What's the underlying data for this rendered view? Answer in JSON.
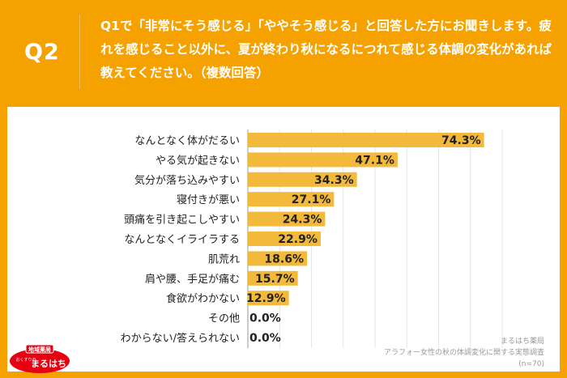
{
  "header": {
    "q_label": "Q2",
    "question": "Q1で「非常にそう感じる」「ややそう感じる」と回答した方にお聞きします。疲れを感じること以外に、夏が終わり秋になるにつれて感じる体調の変化があれば教えてください。（複数回答）"
  },
  "chart_data": {
    "type": "bar",
    "orientation": "horizontal",
    "categories": [
      "なんとなく体がだるい",
      "やる気が起きない",
      "気分が落ち込みやすい",
      "寝付きが悪い",
      "頭痛を引き起こしやすい",
      "なんとなくイライラする",
      "肌荒れ",
      "肩や腰、手足が痛む",
      "食欲がわかない",
      "その他",
      "わからない/答えられない"
    ],
    "values": [
      74.3,
      47.1,
      34.3,
      27.1,
      24.3,
      22.9,
      18.6,
      15.7,
      12.9,
      0.0,
      0.0
    ],
    "value_labels": [
      "74.3%",
      "47.1%",
      "34.3%",
      "27.1%",
      "24.3%",
      "22.9%",
      "18.6%",
      "15.7%",
      "12.9%",
      "0.0%",
      "0.0%"
    ],
    "xlim": [
      0,
      80
    ],
    "bar_color": "#f2b93a",
    "grid": true
  },
  "source": {
    "line1": "まるはち薬局",
    "line2": "アラフォー女性の秋の体調変化に関する実態調査",
    "line3": "(n=70)"
  },
  "logo": {
    "top": "地域薬局",
    "sub": "おくすりの",
    "main": "まるはち"
  },
  "colors": {
    "background": "#f5a200",
    "panel": "#ffffff",
    "bar": "#f2b93a",
    "logo_red": "#e60012"
  }
}
